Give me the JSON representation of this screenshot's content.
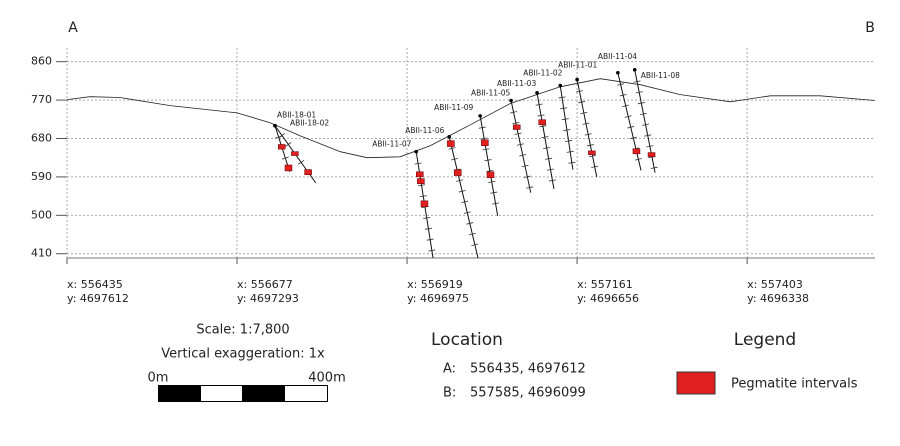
{
  "chart_data": {
    "type": "section",
    "end_labels": [
      "A",
      "B"
    ],
    "xlim": [
      556435,
      557585
    ],
    "ylim": [
      400,
      892
    ],
    "yticks": [
      410,
      500,
      590,
      680,
      770,
      860
    ],
    "xticks": [
      {
        "value": 556435,
        "label": "x: 556435"
      },
      {
        "value": 556677,
        "label": "x: 556677"
      },
      {
        "value": 556919,
        "label": "x: 556919"
      },
      {
        "value": 557161,
        "label": "x: 557161"
      },
      {
        "value": 557403,
        "label": "x: 557403"
      }
    ],
    "xtick_northings": [
      {
        "value": 4697612,
        "label": "y: 4697612"
      },
      {
        "value": 4697293,
        "label": "y: 4697293"
      },
      {
        "value": 4696975,
        "label": "y: 4696975"
      },
      {
        "value": 4696656,
        "label": "y: 4696656"
      },
      {
        "value": 4696338,
        "label": "y: 4696338"
      }
    ],
    "grid": true,
    "surface": {
      "easting": [
        556435,
        556468,
        556510,
        556582,
        556677,
        556724,
        556767,
        556824,
        556862,
        556909,
        556952,
        557009,
        557066,
        557137,
        557194,
        557251,
        557307,
        557379,
        557436,
        557507,
        557585
      ],
      "elev": [
        771,
        778,
        776,
        757,
        740,
        717,
        686,
        649,
        635,
        637,
        663,
        712,
        762,
        801,
        820,
        806,
        783,
        766,
        780,
        780,
        769
      ]
    },
    "pegmatite_color": "#e02020",
    "holes": [
      {
        "name": "ABII-18-01",
        "collar": [
          556731,
          710
        ],
        "end": [
          556752,
          602
        ],
        "pegmatite": [
          [
            666,
            655
          ],
          [
            618,
            604
          ]
        ]
      },
      {
        "name": "ABII-18-02",
        "collar": [
          556731,
          710
        ],
        "end": [
          556789,
          576
        ],
        "pegmatite": [
          [
            649,
            640
          ],
          [
            607,
            595
          ]
        ]
      },
      {
        "name": "ABII-11-07",
        "collar": [
          556932,
          649
        ],
        "end": [
          556956,
          400
        ],
        "pegmatite": [
          [
            602,
            590
          ],
          [
            586,
            574
          ],
          [
            534,
            520
          ]
        ]
      },
      {
        "name": "ABII-11-06",
        "collar": [
          556979,
          684
        ],
        "end": [
          557020,
          400
        ],
        "pegmatite": [
          [
            675,
            661
          ],
          [
            607,
            593
          ]
        ]
      },
      {
        "name": "ABII-11-09",
        "collar": [
          557023,
          733
        ],
        "end": [
          557048,
          499
        ],
        "pegmatite": [
          [
            677,
            663
          ],
          [
            602,
            588
          ]
        ]
      },
      {
        "name": "ABII-11-05",
        "collar": [
          557067,
          769
        ],
        "end": [
          557095,
          553
        ],
        "pegmatite": [
          [
            712,
            701
          ]
        ]
      },
      {
        "name": "ABII-11-03",
        "collar": [
          557104,
          787
        ],
        "end": [
          557128,
          562
        ],
        "pegmatite": [
          [
            724,
            712
          ]
        ]
      },
      {
        "name": "ABII-11-02",
        "collar": [
          557137,
          804
        ],
        "end": [
          557155,
          607
        ],
        "pegmatite": []
      },
      {
        "name": "ABII-11-01",
        "collar": [
          557161,
          818
        ],
        "end": [
          557189,
          590
        ],
        "pegmatite": [
          [
            651,
            642
          ]
        ]
      },
      {
        "name": "ABII-11-04",
        "collar": [
          557219,
          834
        ],
        "end": [
          557252,
          605
        ],
        "pegmatite": [
          [
            656,
            644
          ]
        ]
      },
      {
        "name": "ABII-11-08",
        "collar": [
          557243,
          841
        ],
        "end": [
          557272,
          600
        ],
        "pegmatite": [
          [
            647,
            637
          ]
        ]
      }
    ]
  },
  "scale": {
    "ratio": "Scale: 1:7,800",
    "exaggeration": "Vertical exaggeration: 1x",
    "start": "0m",
    "end": "400m"
  },
  "location": {
    "title": "Location",
    "a_label": "A:",
    "a_coords": "556435, 4697612",
    "b_label": "B:",
    "b_coords": "557585, 4696099"
  },
  "legend": {
    "title": "Legend",
    "label": "Pegmatite intervals"
  }
}
